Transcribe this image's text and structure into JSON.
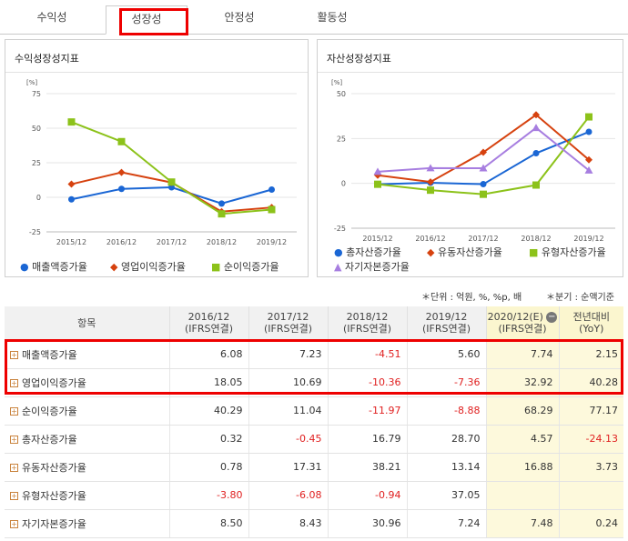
{
  "tabs": [
    {
      "label": "수익성",
      "active": false
    },
    {
      "label": "성장성",
      "active": true
    },
    {
      "label": "안정성",
      "active": false
    },
    {
      "label": "활동성",
      "active": false
    }
  ],
  "left_panel": {
    "title": "수익성장성지표"
  },
  "right_panel": {
    "title": "자산성장성지표"
  },
  "chart_data": [
    {
      "type": "line",
      "unit_label": "[%]",
      "categories": [
        "2015/12",
        "2016/12",
        "2017/12",
        "2018/12",
        "2019/12"
      ],
      "y_ticks": [
        75,
        50,
        25,
        0,
        -25
      ],
      "ylim": [
        -25,
        75
      ],
      "series": [
        {
          "name": "매출액증가율",
          "color": "#1a66d4",
          "marker": "circle",
          "values": [
            -1.5,
            6.08,
            7.23,
            -4.51,
            5.6
          ]
        },
        {
          "name": "영업이익증가율",
          "color": "#d6420f",
          "marker": "diamond",
          "values": [
            9.5,
            18.05,
            10.69,
            -10.36,
            -7.36
          ]
        },
        {
          "name": "순이익증가율",
          "color": "#8cc21a",
          "marker": "square",
          "values": [
            54.5,
            40.29,
            11.04,
            -11.97,
            -8.88
          ]
        }
      ]
    },
    {
      "type": "line",
      "unit_label": "[%]",
      "categories": [
        "2015/12",
        "2016/12",
        "2017/12",
        "2018/12",
        "2019/12"
      ],
      "y_ticks": [
        50,
        25,
        0,
        -25
      ],
      "ylim": [
        -25,
        50
      ],
      "series": [
        {
          "name": "총자산증가율",
          "color": "#1a66d4",
          "marker": "circle",
          "values": [
            -0.5,
            0.32,
            -0.45,
            16.79,
            28.7
          ]
        },
        {
          "name": "유동자산증가율",
          "color": "#d6420f",
          "marker": "diamond",
          "values": [
            4.5,
            0.78,
            17.31,
            38.21,
            13.14
          ]
        },
        {
          "name": "유형자산증가율",
          "color": "#8cc21a",
          "marker": "square",
          "values": [
            -0.5,
            -3.8,
            -6.08,
            -0.94,
            37.05
          ]
        },
        {
          "name": "자기자본증가율",
          "color": "#a77ee0",
          "marker": "triangle",
          "values": [
            6.5,
            8.5,
            8.43,
            30.96,
            7.24
          ]
        }
      ]
    }
  ],
  "notes": {
    "unit": "＊단위 : 억원, %, %p, 배",
    "period": "＊분기 : 순액기준"
  },
  "table": {
    "headers": [
      {
        "line1": "항목",
        "line2": ""
      },
      {
        "line1": "2016/12",
        "line2": "(IFRS연결)"
      },
      {
        "line1": "2017/12",
        "line2": "(IFRS연결)"
      },
      {
        "line1": "2018/12",
        "line2": "(IFRS연결)"
      },
      {
        "line1": "2019/12",
        "line2": "(IFRS연결)"
      },
      {
        "line1": "2020/12(E)",
        "line2": "(IFRS연결)"
      },
      {
        "line1": "전년대비",
        "line2": "(YoY)"
      }
    ],
    "rows": [
      {
        "label": "매출액증가율",
        "values": [
          "6.08",
          "7.23",
          "-4.51",
          "5.60",
          "7.74",
          "2.15"
        ]
      },
      {
        "label": "영업이익증가율",
        "values": [
          "18.05",
          "10.69",
          "-10.36",
          "-7.36",
          "32.92",
          "40.28"
        ]
      },
      {
        "label": "순이익증가율",
        "values": [
          "40.29",
          "11.04",
          "-11.97",
          "-8.88",
          "68.29",
          "77.17"
        ]
      },
      {
        "label": "총자산증가율",
        "values": [
          "0.32",
          "-0.45",
          "16.79",
          "28.70",
          "4.57",
          "-24.13"
        ]
      },
      {
        "label": "유동자산증가율",
        "values": [
          "0.78",
          "17.31",
          "38.21",
          "13.14",
          "16.88",
          "3.73"
        ]
      },
      {
        "label": "유형자산증가율",
        "values": [
          "-3.80",
          "-6.08",
          "-0.94",
          "37.05",
          "",
          ""
        ]
      },
      {
        "label": "자기자본증가율",
        "values": [
          "8.50",
          "8.43",
          "30.96",
          "7.24",
          "7.48",
          "0.24"
        ]
      }
    ]
  }
}
